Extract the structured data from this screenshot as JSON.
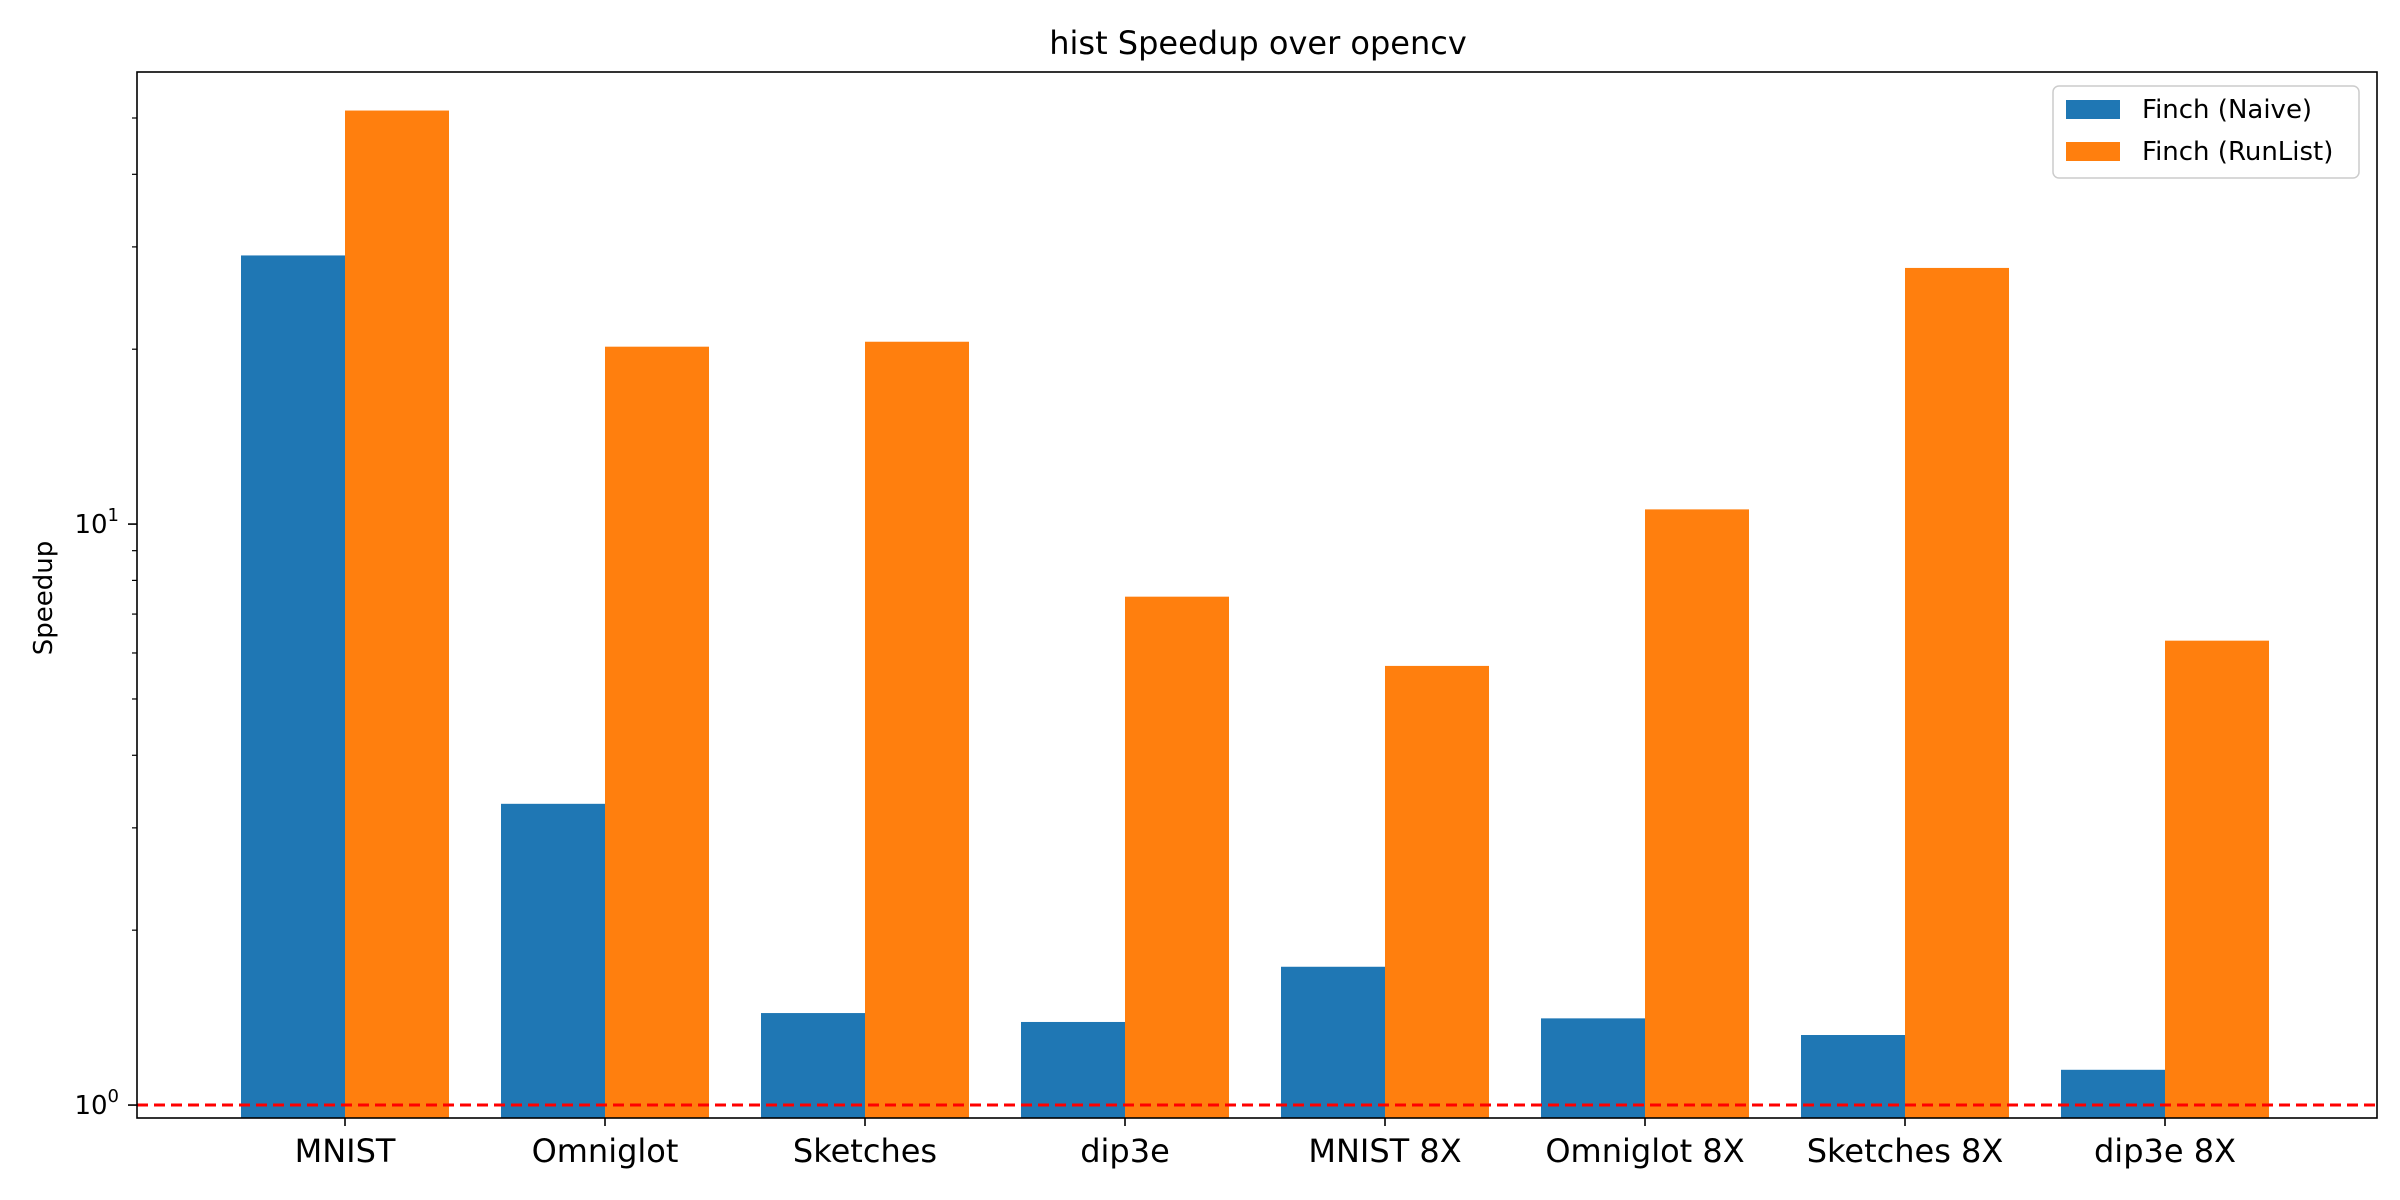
{
  "chart_data": {
    "type": "bar",
    "title": "hist Speedup over opencv",
    "xlabel": "",
    "ylabel": "Speedup",
    "yscale": "log",
    "ylim": [
      0.95,
      60
    ],
    "y_tick_labels": [
      {
        "value": 1,
        "base": "10",
        "exp": "0"
      },
      {
        "value": 10,
        "base": "10",
        "exp": "1"
      }
    ],
    "categories": [
      "MNIST",
      "Omniglot",
      "Sketches",
      "dip3e",
      "MNIST 8X",
      "Omniglot 8X",
      "Sketches 8X",
      "dip3e 8X"
    ],
    "series": [
      {
        "name": "Finch (Naive)",
        "color": "#1f77b4",
        "values": [
          29.0,
          3.3,
          1.44,
          1.39,
          1.73,
          1.41,
          1.32,
          1.15
        ]
      },
      {
        "name": "Finch (RunList)",
        "color": "#ff7f0e",
        "values": [
          51.5,
          20.2,
          20.6,
          7.5,
          5.7,
          10.6,
          27.6,
          6.3
        ]
      }
    ],
    "reference_line": {
      "value": 1,
      "color": "#ff0000",
      "style": "dashed"
    },
    "legend_position": "top-right",
    "grid": false
  }
}
